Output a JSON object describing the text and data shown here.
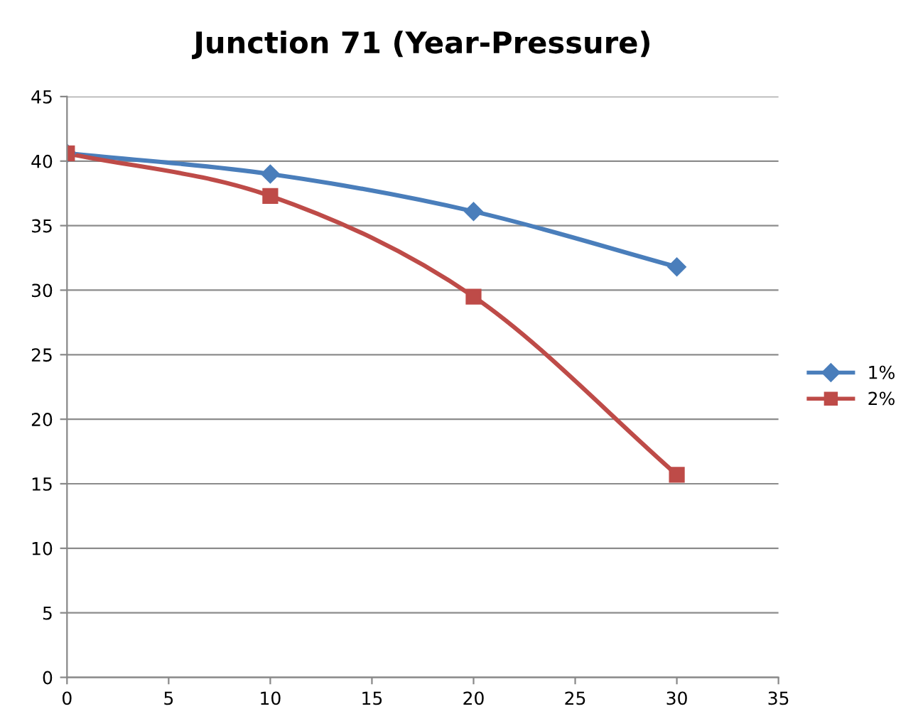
{
  "chart_data": {
    "type": "line",
    "title": "Junction 71 (Year-Pressure)",
    "series": [
      {
        "name": "1%",
        "color": "#4a7ebb",
        "x": [
          0,
          10,
          20,
          30
        ],
        "values": [
          40.6,
          39.0,
          36.1,
          31.8
        ],
        "marker": "diamond"
      },
      {
        "name": "2%",
        "color": "#be4b48",
        "x": [
          0,
          10,
          20,
          30
        ],
        "values": [
          40.6,
          37.3,
          29.5,
          15.7
        ],
        "marker": "square"
      }
    ],
    "xlim": [
      0,
      35
    ],
    "xticks": [
      0,
      5,
      10,
      15,
      20,
      25,
      30,
      35
    ],
    "ylim": [
      0,
      45
    ],
    "yticks": [
      0,
      5,
      10,
      15,
      20,
      25,
      30,
      35,
      40,
      45
    ],
    "grid": "y",
    "legend": "right",
    "line_style": "solid"
  }
}
